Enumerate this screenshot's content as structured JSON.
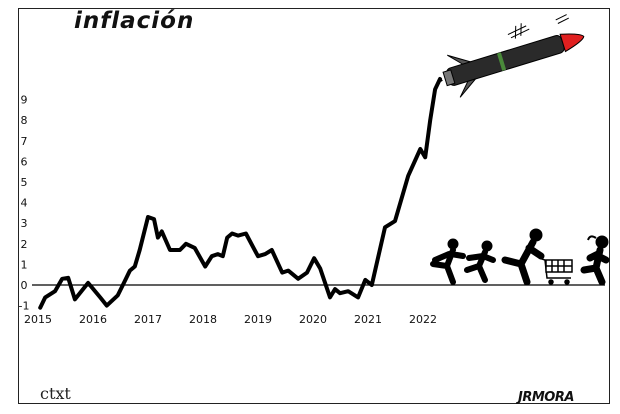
{
  "title": "inflación",
  "brand": "ctxt",
  "signature": "JRMORA",
  "colors": {
    "line": "#000000",
    "rocket_body": "#2a2a2a",
    "rocket_tip": "#e02020",
    "rocket_band": "#4a8a3a"
  },
  "icons": [
    "rocket-icon",
    "running-people-icon",
    "shopping-cart-icon"
  ],
  "chart_data": {
    "type": "line",
    "title": "inflación",
    "xlabel": "",
    "ylabel": "",
    "xlim": [
      2015,
      2022.5
    ],
    "ylim": [
      -1,
      10
    ],
    "x_ticks": [
      "2015",
      "2016",
      "2017",
      "2018",
      "2019",
      "2020",
      "2021",
      "2022"
    ],
    "y_ticks": [
      "-1",
      "0",
      "1",
      "2",
      "3",
      "4",
      "5",
      "6",
      "7",
      "8",
      "9"
    ],
    "grid": false,
    "series": [
      {
        "x": [
          2015.04,
          2015.13,
          2015.31,
          2015.44,
          2015.55,
          2015.67,
          2015.91,
          2016.13,
          2016.25,
          2016.45,
          2016.58,
          2016.67,
          2016.76,
          2016.85,
          2017.0,
          2017.11,
          2017.18,
          2017.25,
          2017.4,
          2017.58,
          2017.69,
          2017.85,
          2018.04,
          2018.16,
          2018.27,
          2018.36,
          2018.44,
          2018.53,
          2018.64,
          2018.78,
          2019.0,
          2019.13,
          2019.25,
          2019.44,
          2019.55,
          2019.73,
          2019.89,
          2020.02,
          2020.13,
          2020.31,
          2020.4,
          2020.49,
          2020.64,
          2020.82,
          2020.95,
          2021.07,
          2021.31,
          2021.49,
          2021.73,
          2021.95,
          2022.04,
          2022.13,
          2022.22,
          2022.31
        ],
        "y": [
          -1.1,
          -0.6,
          -0.3,
          0.3,
          0.35,
          -0.7,
          0.1,
          -0.6,
          -1.0,
          -0.5,
          0.2,
          0.7,
          0.9,
          1.7,
          3.3,
          3.2,
          2.3,
          2.6,
          1.7,
          1.7,
          2.0,
          1.8,
          0.9,
          1.4,
          1.5,
          1.4,
          2.3,
          2.5,
          2.4,
          2.5,
          1.4,
          1.5,
          1.7,
          0.6,
          0.7,
          0.3,
          0.6,
          1.3,
          0.8,
          -0.6,
          -0.2,
          -0.4,
          -0.3,
          -0.6,
          0.25,
          0,
          2.8,
          3.1,
          5.3,
          6.6,
          6.2,
          8.0,
          9.5,
          10.0
        ]
      }
    ]
  }
}
